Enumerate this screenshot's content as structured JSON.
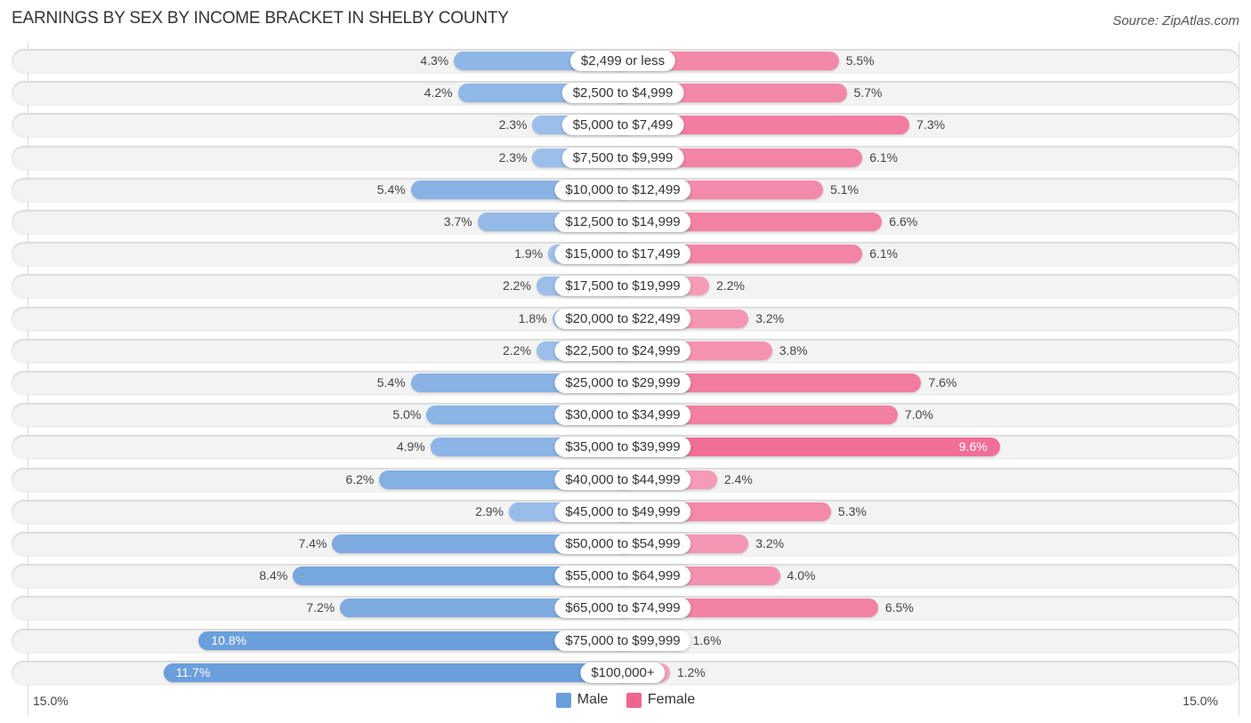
{
  "chart_data": {
    "type": "bar",
    "orientation": "horizontal-diverging",
    "title": "EARNINGS BY SEX BY INCOME BRACKET IN SHELBY COUNTY",
    "source": "Source: ZipAtlas.com",
    "categories": [
      "$2,499 or less",
      "$2,500 to $4,999",
      "$5,000 to $7,499",
      "$7,500 to $9,999",
      "$10,000 to $12,499",
      "$12,500 to $14,999",
      "$15,000 to $17,499",
      "$17,500 to $19,999",
      "$20,000 to $22,499",
      "$22,500 to $24,999",
      "$25,000 to $29,999",
      "$30,000 to $34,999",
      "$35,000 to $39,999",
      "$40,000 to $44,999",
      "$45,000 to $49,999",
      "$50,000 to $54,999",
      "$55,000 to $64,999",
      "$65,000 to $74,999",
      "$75,000 to $99,999",
      "$100,000+"
    ],
    "series": [
      {
        "name": "Male",
        "color": "#6a9fdc",
        "light_color": "#a9c8ec",
        "values": [
          4.3,
          4.2,
          2.3,
          2.3,
          5.4,
          3.7,
          1.9,
          2.2,
          1.8,
          2.2,
          5.4,
          5.0,
          4.9,
          6.2,
          2.9,
          7.4,
          8.4,
          7.2,
          10.8,
          11.7
        ]
      },
      {
        "name": "Female",
        "color": "#f06590",
        "light_color": "#f7aac2",
        "values": [
          5.5,
          5.7,
          7.3,
          6.1,
          5.1,
          6.6,
          6.1,
          2.2,
          3.2,
          3.8,
          7.6,
          7.0,
          9.6,
          2.4,
          5.3,
          3.2,
          4.0,
          6.5,
          1.6,
          1.2
        ]
      }
    ],
    "value_suffix": "%",
    "xlim": [
      -15.0,
      15.0
    ],
    "axis_labels": {
      "left": "15.0%",
      "right": "15.0%"
    },
    "legend": {
      "position": "bottom-center",
      "entries": [
        "Male",
        "Female"
      ]
    },
    "grid": false
  }
}
